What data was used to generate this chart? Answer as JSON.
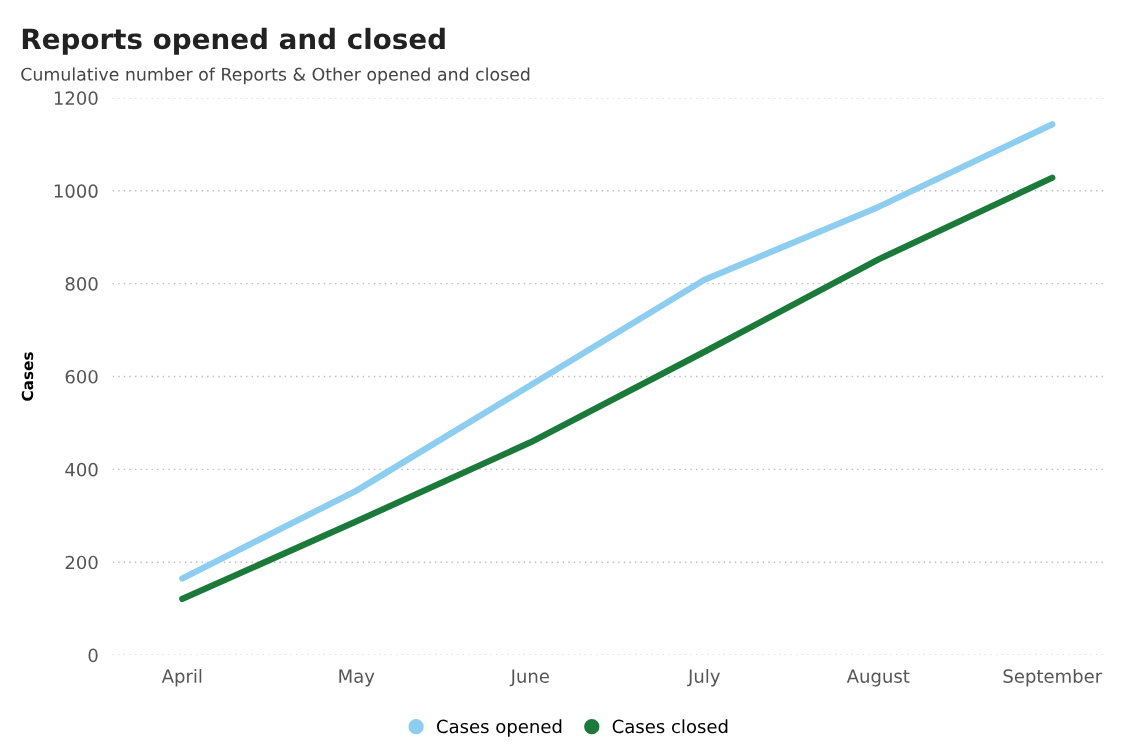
{
  "chart_data": {
    "type": "line",
    "title": "Reports opened and closed",
    "subtitle": "Cumulative number of Reports & Other opened and closed",
    "ylabel": "Cases",
    "categories": [
      "April",
      "May",
      "June",
      "July",
      "August",
      "September"
    ],
    "series": [
      {
        "name": "Cases opened",
        "color": "#8ccdf0",
        "values": [
          165,
          354,
          581,
          808,
          965,
          1143
        ]
      },
      {
        "name": "Cases closed",
        "color": "#1b7a3a",
        "values": [
          121,
          288,
          458,
          653,
          852,
          1028
        ]
      }
    ],
    "ylim": [
      0,
      1200
    ],
    "yticks": [
      0,
      200,
      400,
      600,
      800,
      1000,
      1200
    ],
    "grid": "y",
    "legend": "bottom",
    "marker": "none",
    "line_style": "solid"
  }
}
